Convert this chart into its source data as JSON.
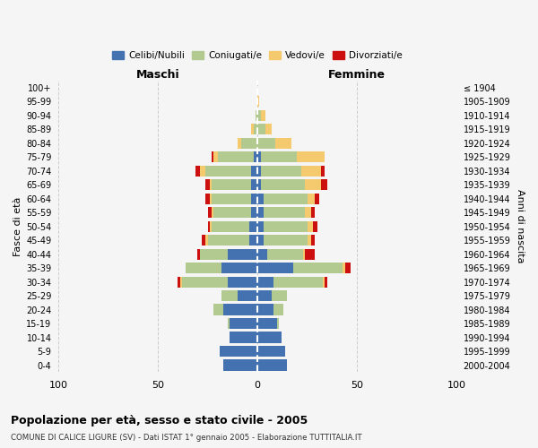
{
  "age_groups": [
    "0-4",
    "5-9",
    "10-14",
    "15-19",
    "20-24",
    "25-29",
    "30-34",
    "35-39",
    "40-44",
    "45-49",
    "50-54",
    "55-59",
    "60-64",
    "65-69",
    "70-74",
    "75-79",
    "80-84",
    "85-89",
    "90-94",
    "95-99",
    "100+"
  ],
  "birth_years": [
    "2000-2004",
    "1995-1999",
    "1990-1994",
    "1985-1989",
    "1980-1984",
    "1975-1979",
    "1970-1974",
    "1965-1969",
    "1960-1964",
    "1955-1959",
    "1950-1954",
    "1945-1949",
    "1940-1944",
    "1935-1939",
    "1930-1934",
    "1925-1929",
    "1920-1924",
    "1915-1919",
    "1910-1914",
    "1905-1909",
    "≤ 1904"
  ],
  "colors": {
    "celibi": "#4472b0",
    "coniugati": "#b2c98f",
    "vedovi": "#f5c96e",
    "divorziati": "#cc1010"
  },
  "maschi": {
    "celibi": [
      17,
      19,
      14,
      14,
      17,
      10,
      15,
      18,
      15,
      4,
      4,
      3,
      3,
      3,
      3,
      2,
      0,
      0,
      0,
      0,
      0
    ],
    "coniugati": [
      0,
      0,
      0,
      1,
      5,
      8,
      23,
      18,
      14,
      21,
      19,
      19,
      20,
      20,
      23,
      18,
      8,
      2,
      1,
      0,
      0
    ],
    "vedovi": [
      0,
      0,
      0,
      0,
      0,
      0,
      1,
      0,
      0,
      1,
      1,
      1,
      1,
      1,
      3,
      2,
      2,
      1,
      0,
      0,
      0
    ],
    "divorziati": [
      0,
      0,
      0,
      0,
      0,
      0,
      1,
      0,
      1,
      2,
      1,
      2,
      2,
      2,
      2,
      1,
      0,
      0,
      0,
      0,
      0
    ]
  },
  "femmine": {
    "nubili": [
      15,
      14,
      12,
      10,
      8,
      7,
      8,
      18,
      5,
      3,
      3,
      3,
      3,
      2,
      2,
      2,
      0,
      0,
      0,
      0,
      0
    ],
    "coniugate": [
      0,
      0,
      0,
      1,
      5,
      8,
      25,
      25,
      18,
      22,
      22,
      21,
      22,
      22,
      20,
      18,
      9,
      4,
      2,
      0,
      0
    ],
    "vedove": [
      0,
      0,
      0,
      0,
      0,
      0,
      1,
      1,
      1,
      2,
      3,
      3,
      4,
      8,
      10,
      14,
      8,
      3,
      2,
      1,
      0
    ],
    "divorziate": [
      0,
      0,
      0,
      0,
      0,
      0,
      1,
      3,
      5,
      2,
      2,
      2,
      2,
      3,
      2,
      0,
      0,
      0,
      0,
      0,
      0
    ]
  },
  "xlim": [
    -100,
    100
  ],
  "xticks": [
    -100,
    -50,
    0,
    50,
    100
  ],
  "xticklabels": [
    "100",
    "50",
    "0",
    "50",
    "100"
  ],
  "title": "Popolazione per età, sesso e stato civile - 2005",
  "subtitle": "COMUNE DI CALICE LIGURE (SV) - Dati ISTAT 1° gennaio 2005 - Elaborazione TUTTITALIA.IT",
  "ylabel_left": "Fasce di età",
  "ylabel_right": "Anni di nascita",
  "maschi_label": "Maschi",
  "femmine_label": "Femmine",
  "legend_labels": [
    "Celibi/Nubili",
    "Coniugati/e",
    "Vedovi/e",
    "Divorziati/e"
  ],
  "bg_color": "#f5f5f5",
  "bar_height": 0.78
}
